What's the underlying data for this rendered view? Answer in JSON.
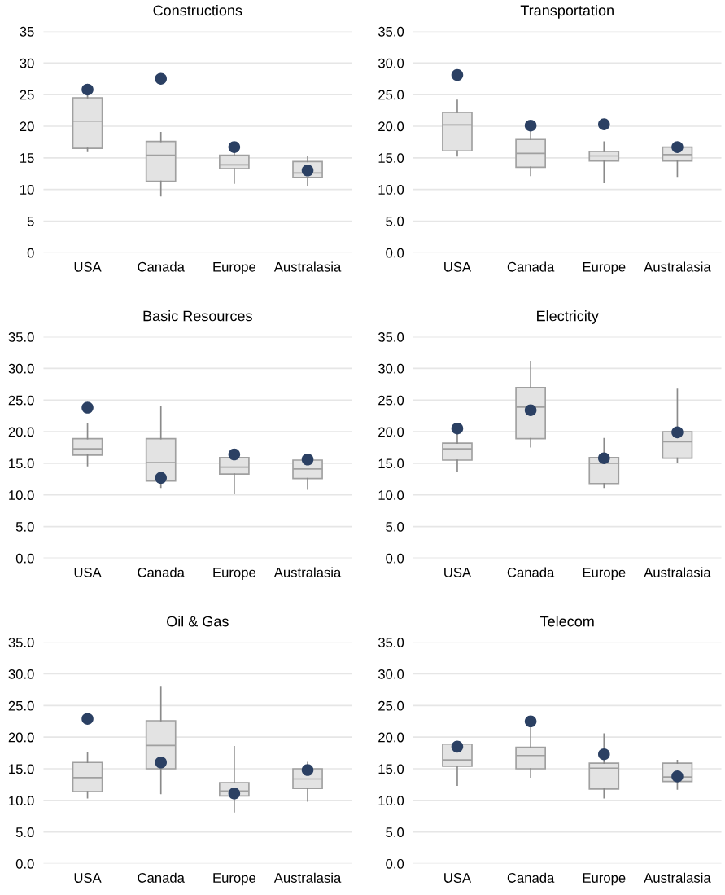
{
  "chart_data": [
    {
      "type": "box",
      "title": "Constructions",
      "categories": [
        "USA",
        "Canada",
        "Europe",
        "Australasia"
      ],
      "ylim": [
        0,
        35
      ],
      "yticks": [
        0,
        5,
        10,
        15,
        20,
        25,
        30,
        35
      ],
      "grid": "y",
      "series": [
        {
          "type": "box",
          "color": "#e3e3e3",
          "boxes": [
            {
              "low": 16,
              "q1": 16.5,
              "median": 20.8,
              "q3": 24.5,
              "high": 25
            },
            {
              "low": 9,
              "q1": 11.3,
              "median": 15.4,
              "q3": 17.6,
              "high": 19
            },
            {
              "low": 11,
              "q1": 13.3,
              "median": 13.9,
              "q3": 15.4,
              "high": 16
            },
            {
              "low": 10.7,
              "q1": 11.9,
              "median": 12.6,
              "q3": 14.4,
              "high": 15.2
            }
          ]
        },
        {
          "type": "scatter",
          "color": "#2b4063",
          "marker": "circle",
          "x": [
            "USA",
            "Canada",
            "Europe",
            "Australasia"
          ],
          "values": [
            25.8,
            27.5,
            16.7,
            13.0
          ]
        }
      ]
    },
    {
      "type": "box",
      "title": "Transportation",
      "categories": [
        "USA",
        "Canada",
        "Europe",
        "Australasia"
      ],
      "ylim": [
        0,
        35
      ],
      "yticks": [
        {
          "value": 0,
          "label": "0.0"
        },
        {
          "value": 5,
          "label": "5.0"
        },
        {
          "value": 10,
          "label": "10.0"
        },
        {
          "value": 15,
          "label": "15.0"
        },
        {
          "value": 20,
          "label": "20.0"
        },
        {
          "value": 25,
          "label": "25.0"
        },
        {
          "value": 30,
          "label": "30.0"
        },
        {
          "value": 35,
          "label": "35.0"
        }
      ],
      "grid": "y",
      "series": [
        {
          "type": "box",
          "color": "#e3e3e3",
          "boxes": [
            {
              "low": 15.3,
              "q1": 16.1,
              "median": 20.2,
              "q3": 22.2,
              "high": 24.1
            },
            {
              "low": 12.2,
              "q1": 13.5,
              "median": 15.7,
              "q3": 17.9,
              "high": 19.3
            },
            {
              "low": 11.1,
              "q1": 14.5,
              "median": 15.3,
              "q3": 16.0,
              "high": 17.5
            },
            {
              "low": 12.1,
              "q1": 14.5,
              "median": 15.5,
              "q3": 16.7,
              "high": 16.7
            }
          ]
        },
        {
          "type": "scatter",
          "color": "#2b4063",
          "marker": "circle",
          "x": [
            "USA",
            "Canada",
            "Europe",
            "Australasia"
          ],
          "values": [
            28.1,
            20.1,
            20.3,
            16.7
          ]
        }
      ]
    },
    {
      "type": "box",
      "title": "Basic Resources",
      "categories": [
        "USA",
        "Canada",
        "Europe",
        "Australasia"
      ],
      "ylim": [
        0,
        35
      ],
      "yticks": [
        {
          "value": 0,
          "label": "0.0"
        },
        {
          "value": 5,
          "label": "5.0"
        },
        {
          "value": 10,
          "label": "10.0"
        },
        {
          "value": 15,
          "label": "15.0"
        },
        {
          "value": 20,
          "label": "20.0"
        },
        {
          "value": 25,
          "label": "25.0"
        },
        {
          "value": 30,
          "label": "30.0"
        },
        {
          "value": 35,
          "label": "35.0"
        }
      ],
      "grid": "y",
      "series": [
        {
          "type": "box",
          "color": "#e3e3e3",
          "boxes": [
            {
              "low": 14.6,
              "q1": 16.3,
              "median": 17.3,
              "q3": 18.9,
              "high": 21.3
            },
            {
              "low": 11.2,
              "q1": 12.2,
              "median": 15.1,
              "q3": 18.9,
              "high": 23.9
            },
            {
              "low": 10.3,
              "q1": 13.3,
              "median": 14.4,
              "q3": 15.9,
              "high": 16.3
            },
            {
              "low": 10.9,
              "q1": 12.6,
              "median": 14.1,
              "q3": 15.5,
              "high": 15.6
            }
          ]
        },
        {
          "type": "scatter",
          "color": "#2b4063",
          "marker": "circle",
          "x": [
            "USA",
            "Canada",
            "Europe",
            "Australasia"
          ],
          "values": [
            23.8,
            12.7,
            16.4,
            15.6
          ]
        }
      ]
    },
    {
      "type": "box",
      "title": "Electricity",
      "categories": [
        "USA",
        "Canada",
        "Europe",
        "Australasia"
      ],
      "ylim": [
        0,
        35
      ],
      "yticks": [
        {
          "value": 0,
          "label": "0.0"
        },
        {
          "value": 5,
          "label": "5.0"
        },
        {
          "value": 10,
          "label": "10.0"
        },
        {
          "value": 15,
          "label": "15.0"
        },
        {
          "value": 20,
          "label": "20.0"
        },
        {
          "value": 25,
          "label": "25.0"
        },
        {
          "value": 30,
          "label": "30.0"
        },
        {
          "value": 35,
          "label": "35.0"
        }
      ],
      "grid": "y",
      "series": [
        {
          "type": "box",
          "color": "#e3e3e3",
          "boxes": [
            {
              "low": 13.7,
              "q1": 15.5,
              "median": 17.3,
              "q3": 18.2,
              "high": 20.5
            },
            {
              "low": 17.6,
              "q1": 18.9,
              "median": 23.9,
              "q3": 27.0,
              "high": 31.1
            },
            {
              "low": 11.2,
              "q1": 11.8,
              "median": 15.0,
              "q3": 15.9,
              "high": 18.9
            },
            {
              "low": 15.2,
              "q1": 15.8,
              "median": 18.4,
              "q3": 20.0,
              "high": 26.7
            }
          ]
        },
        {
          "type": "scatter",
          "color": "#2b4063",
          "marker": "circle",
          "x": [
            "USA",
            "Canada",
            "Europe",
            "Australasia"
          ],
          "values": [
            20.5,
            23.4,
            15.8,
            19.9
          ]
        }
      ]
    },
    {
      "type": "box",
      "title": "Oil & Gas",
      "categories": [
        "USA",
        "Canada",
        "Europe",
        "Australasia"
      ],
      "ylim": [
        0,
        35
      ],
      "yticks": [
        {
          "value": 0,
          "label": "0.0"
        },
        {
          "value": 5,
          "label": "5.0"
        },
        {
          "value": 10,
          "label": "10.0"
        },
        {
          "value": 15,
          "label": "15.0"
        },
        {
          "value": 20,
          "label": "20.0"
        },
        {
          "value": 25,
          "label": "25.0"
        },
        {
          "value": 30,
          "label": "30.0"
        },
        {
          "value": 35,
          "label": "35.0"
        }
      ],
      "grid": "y",
      "series": [
        {
          "type": "box",
          "color": "#e3e3e3",
          "boxes": [
            {
              "low": 10.4,
              "q1": 11.4,
              "median": 13.6,
              "q3": 16.0,
              "high": 17.5
            },
            {
              "low": 11.1,
              "q1": 15.0,
              "median": 18.7,
              "q3": 22.6,
              "high": 28.0
            },
            {
              "low": 8.2,
              "q1": 10.7,
              "median": 11.5,
              "q3": 12.8,
              "high": 18.5
            },
            {
              "low": 9.9,
              "q1": 11.9,
              "median": 13.4,
              "q3": 15.0,
              "high": 16.0
            }
          ]
        },
        {
          "type": "scatter",
          "color": "#2b4063",
          "marker": "circle",
          "x": [
            "USA",
            "Canada",
            "Europe",
            "Australasia"
          ],
          "values": [
            22.9,
            16.0,
            11.1,
            14.8
          ]
        }
      ]
    },
    {
      "type": "box",
      "title": "Telecom",
      "categories": [
        "USA",
        "Canada",
        "Europe",
        "Australasia"
      ],
      "ylim": [
        0,
        35
      ],
      "yticks": [
        {
          "value": 0,
          "label": "0.0"
        },
        {
          "value": 5,
          "label": "5.0"
        },
        {
          "value": 10,
          "label": "10.0"
        },
        {
          "value": 15,
          "label": "15.0"
        },
        {
          "value": 20,
          "label": "20.0"
        },
        {
          "value": 25,
          "label": "25.0"
        },
        {
          "value": 30,
          "label": "30.0"
        },
        {
          "value": 35,
          "label": "35.0"
        }
      ],
      "grid": "y",
      "series": [
        {
          "type": "box",
          "color": "#e3e3e3",
          "boxes": [
            {
              "low": 12.4,
              "q1": 15.4,
              "median": 16.4,
              "q3": 18.9,
              "high": 18.9
            },
            {
              "low": 13.7,
              "q1": 15.0,
              "median": 17.1,
              "q3": 18.4,
              "high": 21.5
            },
            {
              "low": 10.4,
              "q1": 11.8,
              "median": 15.1,
              "q3": 15.9,
              "high": 20.5
            },
            {
              "low": 11.8,
              "q1": 13.0,
              "median": 13.7,
              "q3": 15.9,
              "high": 16.3
            }
          ]
        },
        {
          "type": "scatter",
          "color": "#2b4063",
          "marker": "circle",
          "x": [
            "USA",
            "Canada",
            "Europe",
            "Australasia"
          ],
          "values": [
            18.5,
            22.5,
            17.3,
            13.8
          ]
        }
      ]
    }
  ]
}
